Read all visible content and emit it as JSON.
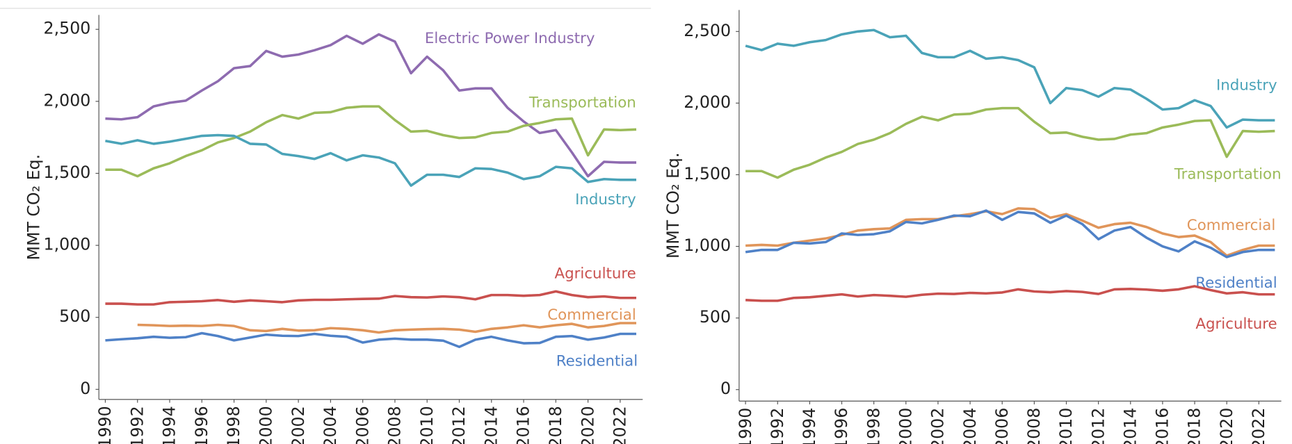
{
  "chart_data": [
    {
      "type": "line",
      "y_label": "MMT CO₂ Eq.",
      "x": [
        1990,
        1991,
        1992,
        1993,
        1994,
        1995,
        1996,
        1997,
        1998,
        1999,
        2000,
        2001,
        2002,
        2003,
        2004,
        2005,
        2006,
        2007,
        2008,
        2009,
        2010,
        2011,
        2012,
        2013,
        2014,
        2015,
        2016,
        2017,
        2018,
        2019,
        2020,
        2021,
        2022,
        2023
      ],
      "xlim": [
        1989.6,
        2023.4
      ],
      "xticks": [
        1990,
        1992,
        1994,
        1996,
        1998,
        2000,
        2002,
        2004,
        2006,
        2008,
        2010,
        2012,
        2014,
        2016,
        2018,
        2020,
        2022
      ],
      "ylim": [
        -70,
        2600
      ],
      "yticks": [
        0,
        500,
        {
          "value": 1000,
          "label": "1,000"
        },
        {
          "value": 1500,
          "label": "1,500"
        },
        {
          "value": 2000,
          "label": "2,000"
        },
        {
          "value": 2500,
          "label": "2,500"
        }
      ],
      "series": [
        {
          "name": "Electric Power Industry",
          "color": "#8e6bb0",
          "values": [
            1880,
            1875,
            1890,
            1965,
            1990,
            2005,
            2075,
            2140,
            2230,
            2245,
            2350,
            2310,
            2325,
            2355,
            2390,
            2455,
            2400,
            2465,
            2415,
            2195,
            2310,
            2215,
            2075,
            2090,
            2090,
            1955,
            1860,
            1780,
            1800,
            1645,
            1480,
            1580,
            1575,
            1575
          ]
        },
        {
          "name": "Transportation",
          "color": "#9bbb59",
          "values": [
            1525,
            1525,
            1480,
            1535,
            1570,
            1620,
            1660,
            1715,
            1745,
            1790,
            1855,
            1905,
            1880,
            1920,
            1925,
            1955,
            1965,
            1965,
            1870,
            1790,
            1795,
            1765,
            1745,
            1750,
            1780,
            1790,
            1830,
            1850,
            1875,
            1880,
            1625,
            1805,
            1800,
            1805
          ]
        },
        {
          "name": "Industry",
          "color": "#4aa3b8",
          "values": [
            1725,
            1705,
            1730,
            1705,
            1720,
            1740,
            1760,
            1765,
            1760,
            1705,
            1700,
            1635,
            1620,
            1600,
            1640,
            1590,
            1625,
            1610,
            1570,
            1415,
            1490,
            1490,
            1475,
            1535,
            1530,
            1505,
            1460,
            1480,
            1545,
            1535,
            1440,
            1460,
            1455,
            1455
          ]
        },
        {
          "name": "Agriculture",
          "color": "#c9504e",
          "values": [
            595,
            595,
            590,
            590,
            605,
            608,
            612,
            620,
            608,
            618,
            612,
            605,
            618,
            622,
            622,
            625,
            628,
            630,
            648,
            640,
            638,
            645,
            640,
            625,
            655,
            655,
            650,
            655,
            680,
            655,
            640,
            645,
            635,
            635
          ]
        },
        {
          "name": "Commercial",
          "color": "#e0955a",
          "values": [
            null,
            null,
            448,
            445,
            440,
            442,
            440,
            448,
            440,
            410,
            405,
            420,
            408,
            410,
            425,
            420,
            410,
            395,
            410,
            415,
            418,
            420,
            415,
            400,
            420,
            430,
            445,
            430,
            445,
            455,
            430,
            440,
            460,
            460
          ]
        },
        {
          "name": "Residential",
          "color": "#4f81c7",
          "values": [
            340,
            348,
            355,
            365,
            358,
            362,
            390,
            370,
            340,
            360,
            380,
            372,
            370,
            385,
            372,
            365,
            325,
            345,
            352,
            345,
            345,
            338,
            295,
            345,
            365,
            340,
            320,
            322,
            365,
            370,
            345,
            360,
            385,
            385
          ]
        }
      ]
    },
    {
      "type": "line",
      "y_label": "MMT CO₂ Eq.",
      "x": [
        1990,
        1991,
        1992,
        1993,
        1994,
        1995,
        1996,
        1997,
        1998,
        1999,
        2000,
        2001,
        2002,
        2003,
        2004,
        2005,
        2006,
        2007,
        2008,
        2009,
        2010,
        2011,
        2012,
        2013,
        2014,
        2015,
        2016,
        2017,
        2018,
        2019,
        2020,
        2021,
        2022,
        2023
      ],
      "xlim": [
        1989.6,
        2023.4
      ],
      "xticks": [
        1990,
        1992,
        1994,
        1996,
        1998,
        2000,
        2002,
        2004,
        2006,
        2008,
        2010,
        2012,
        2014,
        2016,
        2018,
        2020,
        2022
      ],
      "ylim": [
        -80,
        2650
      ],
      "yticks": [
        0,
        500,
        {
          "value": 1000,
          "label": "1,000"
        },
        {
          "value": 1500,
          "label": "1,500"
        },
        {
          "value": 2000,
          "label": "2,000"
        },
        {
          "value": 2500,
          "label": "2,500"
        }
      ],
      "series": [
        {
          "name": "Industry",
          "color": "#4aa3b8",
          "values": [
            2400,
            2370,
            2415,
            2400,
            2425,
            2440,
            2480,
            2500,
            2510,
            2460,
            2470,
            2350,
            2320,
            2320,
            2365,
            2310,
            2320,
            2300,
            2250,
            2000,
            2105,
            2090,
            2045,
            2105,
            2095,
            2030,
            1955,
            1965,
            2020,
            1980,
            1830,
            1885,
            1880,
            1880
          ]
        },
        {
          "name": "Transportation",
          "color": "#9bbb59",
          "values": [
            1525,
            1525,
            1480,
            1535,
            1570,
            1620,
            1660,
            1715,
            1745,
            1790,
            1855,
            1905,
            1880,
            1920,
            1925,
            1955,
            1965,
            1965,
            1870,
            1790,
            1795,
            1765,
            1745,
            1750,
            1780,
            1790,
            1830,
            1850,
            1875,
            1880,
            1625,
            1805,
            1800,
            1805
          ]
        },
        {
          "name": "Commercial",
          "color": "#e0955a",
          "values": [
            1005,
            1010,
            1005,
            1025,
            1040,
            1055,
            1080,
            1110,
            1120,
            1125,
            1185,
            1190,
            1190,
            1210,
            1225,
            1245,
            1225,
            1265,
            1260,
            1200,
            1225,
            1180,
            1130,
            1155,
            1165,
            1135,
            1090,
            1065,
            1075,
            1030,
            935,
            975,
            1005,
            1005
          ]
        },
        {
          "name": "Residential",
          "color": "#4f81c7",
          "values": [
            960,
            975,
            975,
            1025,
            1020,
            1030,
            1090,
            1080,
            1085,
            1105,
            1170,
            1160,
            1185,
            1215,
            1210,
            1250,
            1185,
            1240,
            1230,
            1165,
            1215,
            1155,
            1050,
            1110,
            1135,
            1060,
            1000,
            965,
            1035,
            990,
            925,
            960,
            975,
            975
          ]
        },
        {
          "name": "Agriculture",
          "color": "#c9504e",
          "values": [
            625,
            620,
            620,
            640,
            645,
            655,
            665,
            650,
            660,
            655,
            648,
            662,
            670,
            668,
            675,
            672,
            678,
            700,
            685,
            680,
            688,
            682,
            668,
            700,
            703,
            698,
            690,
            700,
            722,
            695,
            672,
            680,
            665,
            665
          ]
        }
      ]
    }
  ]
}
